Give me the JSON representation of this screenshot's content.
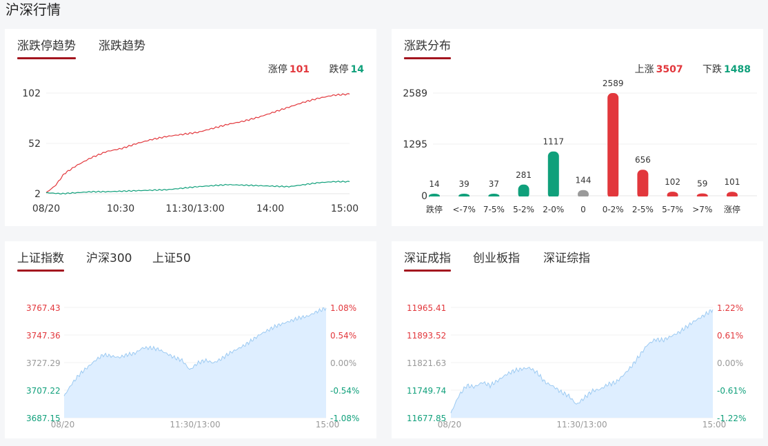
{
  "page_title": "沪深行情",
  "colors": {
    "up": "#e2373c",
    "down": "#10a07b",
    "flat": "#9a9a9a",
    "area_fill": "#deeeff",
    "area_line": "#9ccaf2",
    "accent": "#a3141e"
  },
  "limit_panel": {
    "tabs": [
      "涨跌停趋势",
      "涨跌趋势"
    ],
    "active_tab": 0,
    "legend": {
      "up_label": "涨停",
      "up_value": "101",
      "down_label": "跌停",
      "down_value": "14"
    },
    "chart_data": {
      "type": "line",
      "x_ticks": [
        "08/20",
        "10:30",
        "11:30/13:00",
        "14:00",
        "15:00"
      ],
      "y_ticks": [
        "102",
        "52",
        "2"
      ],
      "ylim": [
        2,
        102
      ],
      "series": [
        {
          "name": "涨停",
          "points": [
            [
              0,
              3
            ],
            [
              0.03,
              10
            ],
            [
              0.06,
              22
            ],
            [
              0.1,
              30
            ],
            [
              0.15,
              38
            ],
            [
              0.2,
              44
            ],
            [
              0.25,
              47
            ],
            [
              0.3,
              52
            ],
            [
              0.35,
              56
            ],
            [
              0.4,
              59
            ],
            [
              0.45,
              61
            ],
            [
              0.5,
              63
            ],
            [
              0.55,
              67
            ],
            [
              0.6,
              71
            ],
            [
              0.65,
              74
            ],
            [
              0.7,
              78
            ],
            [
              0.75,
              83
            ],
            [
              0.8,
              88
            ],
            [
              0.85,
              93
            ],
            [
              0.9,
              97
            ],
            [
              0.95,
              100
            ],
            [
              1,
              101
            ]
          ]
        },
        {
          "name": "跌停",
          "points": [
            [
              0,
              3
            ],
            [
              0.05,
              2
            ],
            [
              0.1,
              3
            ],
            [
              0.15,
              4
            ],
            [
              0.2,
              4
            ],
            [
              0.3,
              5
            ],
            [
              0.4,
              6
            ],
            [
              0.5,
              9
            ],
            [
              0.6,
              11
            ],
            [
              0.7,
              10
            ],
            [
              0.8,
              9
            ],
            [
              0.85,
              11
            ],
            [
              0.9,
              13
            ],
            [
              0.95,
              14
            ],
            [
              1,
              14
            ]
          ]
        }
      ]
    }
  },
  "dist_panel": {
    "tabs": [
      "涨跌分布"
    ],
    "active_tab": 0,
    "legend": {
      "up_label": "上涨",
      "up_value": "3507",
      "down_label": "下跌",
      "down_value": "1488"
    },
    "chart_data": {
      "type": "bar",
      "categories": [
        "跌停",
        "<-7%",
        "7-5%",
        "5-2%",
        "2-0%",
        "0",
        "0-2%",
        "2-5%",
        "5-7%",
        ">7%",
        "涨停"
      ],
      "values": [
        14,
        39,
        37,
        281,
        1117,
        144,
        2589,
        656,
        102,
        59,
        101
      ],
      "value_labels": [
        "14",
        "39",
        "37",
        "281",
        "1117",
        "144",
        "2589",
        "656",
        "102",
        "59",
        "101"
      ],
      "bar_kinds": [
        "down",
        "down",
        "down",
        "down",
        "down",
        "flat",
        "up",
        "up",
        "up",
        "up",
        "up"
      ],
      "y_ticks": [
        "2589",
        "1295",
        "0"
      ],
      "ylim": [
        0,
        2589
      ]
    }
  },
  "sh_panel": {
    "tabs": [
      "上证指数",
      "沪深300",
      "上证50"
    ],
    "active_tab": 0,
    "chart_data": {
      "type": "area",
      "x_ticks": [
        "08/20",
        "11:30/13:00",
        "15:00"
      ],
      "left_ticks": [
        "3767.43",
        "3747.36",
        "3727.29",
        "3707.22",
        "3687.15"
      ],
      "right_ticks": [
        "1.08%",
        "0.54%",
        "0.00%",
        "-0.54%",
        "-1.08%"
      ],
      "ylim": [
        3687.15,
        3767.43
      ],
      "points": [
        [
          0,
          3703
        ],
        [
          0.03,
          3712
        ],
        [
          0.06,
          3719
        ],
        [
          0.09,
          3724
        ],
        [
          0.12,
          3729
        ],
        [
          0.15,
          3733
        ],
        [
          0.18,
          3732
        ],
        [
          0.21,
          3731
        ],
        [
          0.24,
          3733
        ],
        [
          0.27,
          3734
        ],
        [
          0.3,
          3738
        ],
        [
          0.33,
          3738
        ],
        [
          0.36,
          3737
        ],
        [
          0.39,
          3734
        ],
        [
          0.42,
          3731
        ],
        [
          0.45,
          3729
        ],
        [
          0.48,
          3722
        ],
        [
          0.51,
          3727
        ],
        [
          0.54,
          3729
        ],
        [
          0.57,
          3727
        ],
        [
          0.6,
          3730
        ],
        [
          0.63,
          3734
        ],
        [
          0.66,
          3737
        ],
        [
          0.69,
          3740
        ],
        [
          0.72,
          3744
        ],
        [
          0.75,
          3748
        ],
        [
          0.78,
          3751
        ],
        [
          0.81,
          3754
        ],
        [
          0.84,
          3756
        ],
        [
          0.87,
          3758
        ],
        [
          0.9,
          3760
        ],
        [
          0.93,
          3761
        ],
        [
          0.96,
          3764
        ],
        [
          1,
          3767
        ]
      ]
    }
  },
  "sz_panel": {
    "tabs": [
      "深证成指",
      "创业板指",
      "深证综指"
    ],
    "active_tab": 0,
    "chart_data": {
      "type": "area",
      "x_ticks": [
        "08/20",
        "11:30/13:00",
        "15:00"
      ],
      "left_ticks": [
        "11965.41",
        "11893.52",
        "11821.63",
        "11749.74",
        "11677.85"
      ],
      "right_ticks": [
        "1.22%",
        "0.61%",
        "0.00%",
        "-0.61%",
        "-1.22%"
      ],
      "ylim": [
        11677.85,
        11965.41
      ],
      "points": [
        [
          0,
          11690
        ],
        [
          0.03,
          11735
        ],
        [
          0.06,
          11762
        ],
        [
          0.09,
          11758
        ],
        [
          0.12,
          11770
        ],
        [
          0.15,
          11762
        ],
        [
          0.18,
          11775
        ],
        [
          0.21,
          11790
        ],
        [
          0.24,
          11800
        ],
        [
          0.27,
          11805
        ],
        [
          0.3,
          11808
        ],
        [
          0.33,
          11795
        ],
        [
          0.36,
          11770
        ],
        [
          0.39,
          11760
        ],
        [
          0.42,
          11745
        ],
        [
          0.45,
          11735
        ],
        [
          0.48,
          11712
        ],
        [
          0.51,
          11730
        ],
        [
          0.54,
          11748
        ],
        [
          0.57,
          11752
        ],
        [
          0.6,
          11765
        ],
        [
          0.63,
          11770
        ],
        [
          0.66,
          11790
        ],
        [
          0.69,
          11812
        ],
        [
          0.72,
          11840
        ],
        [
          0.75,
          11868
        ],
        [
          0.78,
          11882
        ],
        [
          0.81,
          11880
        ],
        [
          0.84,
          11890
        ],
        [
          0.87,
          11900
        ],
        [
          0.9,
          11915
        ],
        [
          0.93,
          11930
        ],
        [
          0.96,
          11942
        ],
        [
          1,
          11960
        ]
      ]
    }
  }
}
